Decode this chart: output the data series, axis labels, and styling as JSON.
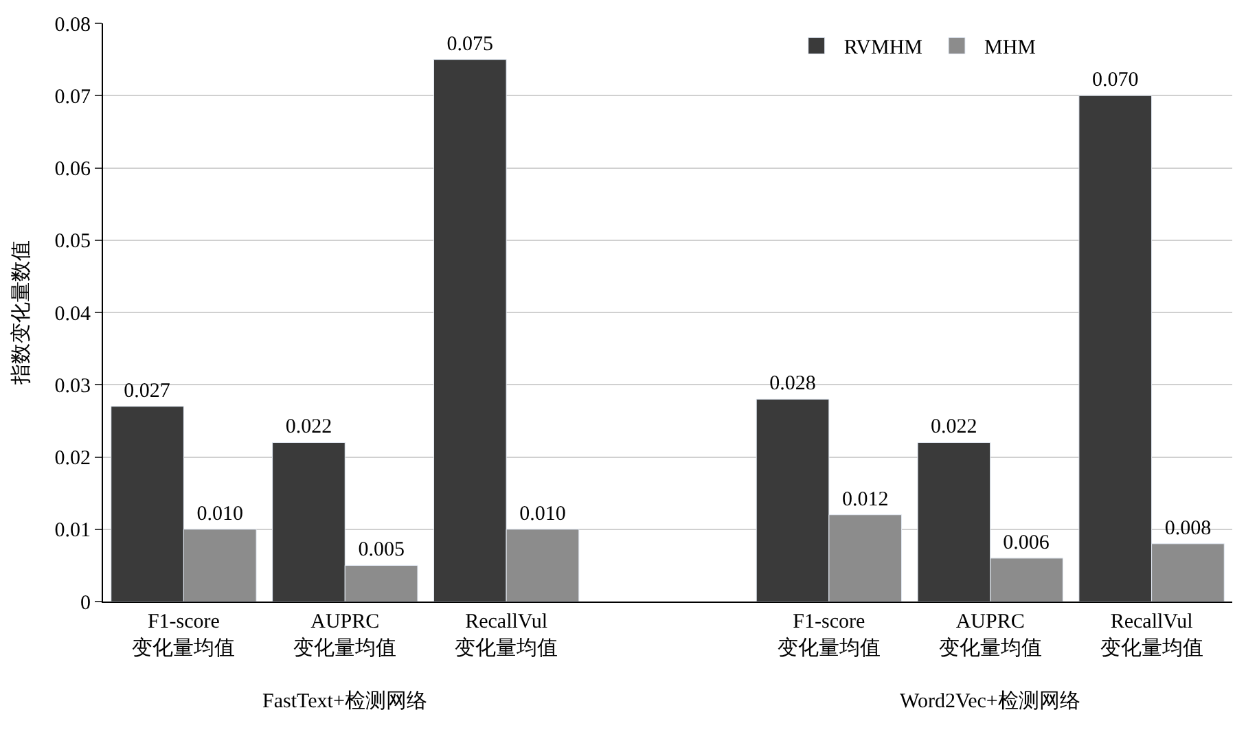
{
  "chart_data": {
    "type": "bar",
    "ylabel": "指数变化量数值",
    "categories": [
      "F1-score\n变化量均值",
      "AUPRC\n变化量均值",
      "RecallVul\n变化量均值",
      null,
      "F1-score\n变化量均值",
      "AUPRC\n变化量均值",
      "RecallVul\n变化量均值"
    ],
    "series": [
      {
        "name": "RVMHM",
        "color": "#3a3a3a",
        "values": [
          0.027,
          0.022,
          0.075,
          null,
          0.028,
          0.022,
          0.07
        ],
        "value_labels": [
          "0.027",
          "0.022",
          "0.075",
          null,
          "0.028",
          "0.022",
          "0.070"
        ]
      },
      {
        "name": "MHM",
        "color": "#8c8c8c",
        "values": [
          0.01,
          0.005,
          0.01,
          null,
          0.012,
          0.006,
          0.008
        ],
        "value_labels": [
          "0.010",
          "0.005",
          "0.010",
          null,
          "0.012",
          "0.006",
          "0.008"
        ]
      }
    ],
    "annotations": [
      "FastText+检测网络",
      "Word2Vec+检测网络"
    ],
    "ylim": [
      0,
      0.08
    ],
    "yticks": [
      0,
      0.01,
      0.02,
      0.03,
      0.04,
      0.05,
      0.06,
      0.07,
      0.08
    ],
    "grid": "y",
    "legend": "top right"
  }
}
